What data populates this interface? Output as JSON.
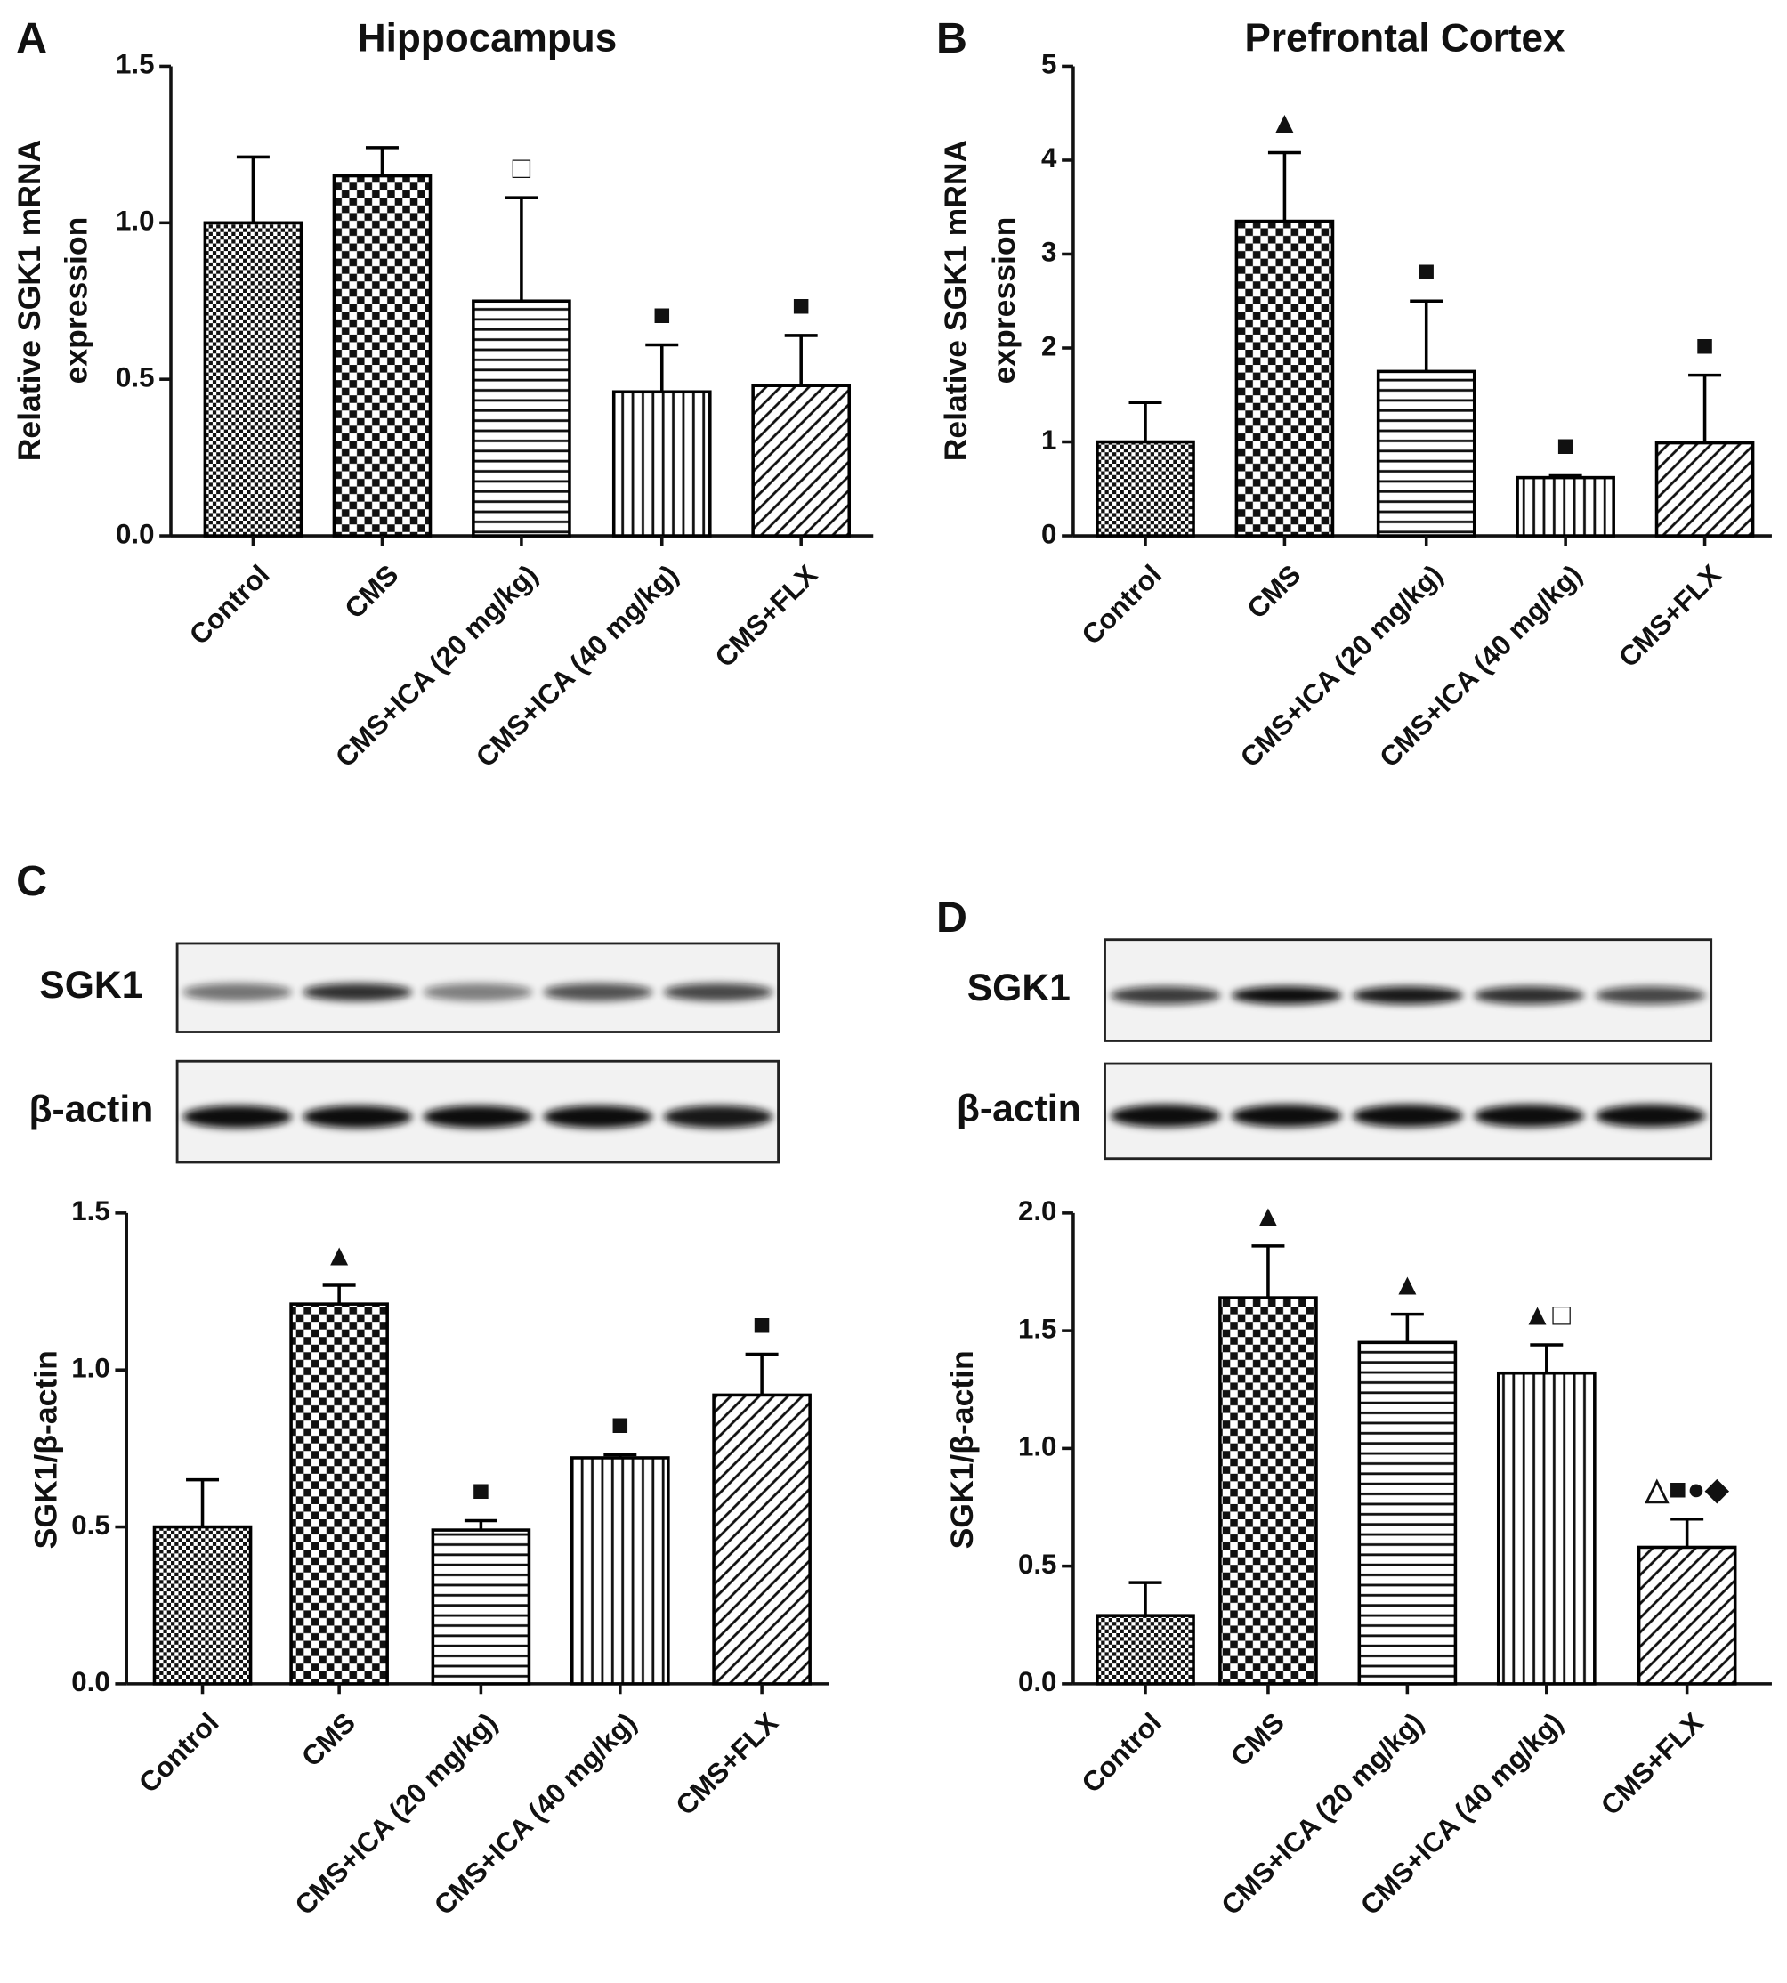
{
  "chart_data": [
    {
      "type": "bar",
      "panel": "A",
      "title": "Hippocampus",
      "ylabel": [
        "Relative SGK1 mRNA",
        "expression"
      ],
      "categories": [
        "Control",
        "CMS",
        "CMS+ICA (20 mg/kg)",
        "CMS+ICA (40 mg/kg)",
        "CMS+FLX"
      ],
      "values": [
        1.0,
        1.15,
        0.75,
        0.46,
        0.48
      ],
      "errors": [
        0.21,
        0.09,
        0.33,
        0.15,
        0.16
      ],
      "annotations": [
        null,
        null,
        "□",
        "■",
        "■"
      ],
      "color": "#000000",
      "ylim": [
        0,
        1.5
      ],
      "yticks": [
        {
          "value": 0,
          "label": "0.0"
        },
        0.5,
        {
          "value": 1,
          "label": "1.0"
        },
        1.5
      ]
    },
    {
      "type": "bar",
      "panel": "B",
      "title": "Prefrontal Cortex",
      "ylabel": [
        "Relative SGK1 mRNA",
        "expression"
      ],
      "categories": [
        "Control",
        "CMS",
        "CMS+ICA (20 mg/kg)",
        "CMS+ICA (40 mg/kg)",
        "CMS+FLX"
      ],
      "values": [
        1.0,
        3.35,
        1.75,
        0.62,
        0.99
      ],
      "errors": [
        0.42,
        0.73,
        0.75,
        0.02,
        0.72
      ],
      "annotations": [
        null,
        "▲",
        "■",
        "■",
        "■"
      ],
      "color": "#000000",
      "ylim": [
        0,
        5
      ],
      "yticks": [
        0,
        1,
        2,
        3,
        4,
        5
      ]
    },
    {
      "type": "bar",
      "panel": "C",
      "ylabel": [
        "SGK1/β-actin"
      ],
      "blot_labels": [
        "SGK1",
        "β-actin"
      ],
      "categories": [
        "Control",
        "CMS",
        "CMS+ICA (20 mg/kg)",
        "CMS+ICA (40 mg/kg)",
        "CMS+FLX"
      ],
      "values": [
        0.5,
        1.21,
        0.49,
        0.72,
        0.92
      ],
      "errors": [
        0.15,
        0.06,
        0.03,
        0.01,
        0.13
      ],
      "annotations": [
        null,
        "▲",
        "■",
        "■",
        "■"
      ],
      "color": "#000000",
      "ylim": [
        0,
        1.5
      ],
      "yticks": [
        {
          "value": 0,
          "label": "0.0"
        },
        0.5,
        {
          "value": 1,
          "label": "1.0"
        },
        1.5
      ]
    },
    {
      "type": "bar",
      "panel": "D",
      "ylabel": [
        "SGK1/β-actin"
      ],
      "blot_labels": [
        "SGK1",
        "β-actin"
      ],
      "categories": [
        "Control",
        "CMS",
        "CMS+ICA (20 mg/kg)",
        "CMS+ICA (40 mg/kg)",
        "CMS+FLX"
      ],
      "values": [
        0.29,
        1.64,
        1.45,
        1.32,
        0.58
      ],
      "errors": [
        0.14,
        0.22,
        0.12,
        0.12,
        0.12
      ],
      "annotations": [
        null,
        "▲",
        "▲",
        "▲□",
        "△■●◆"
      ],
      "color": "#000000",
      "ylim": [
        0,
        2
      ],
      "yticks": [
        {
          "value": 0,
          "label": "0.0"
        },
        0.5,
        {
          "value": 1,
          "label": "1.0"
        },
        1.5,
        {
          "value": 2,
          "label": "2.0"
        }
      ]
    }
  ]
}
